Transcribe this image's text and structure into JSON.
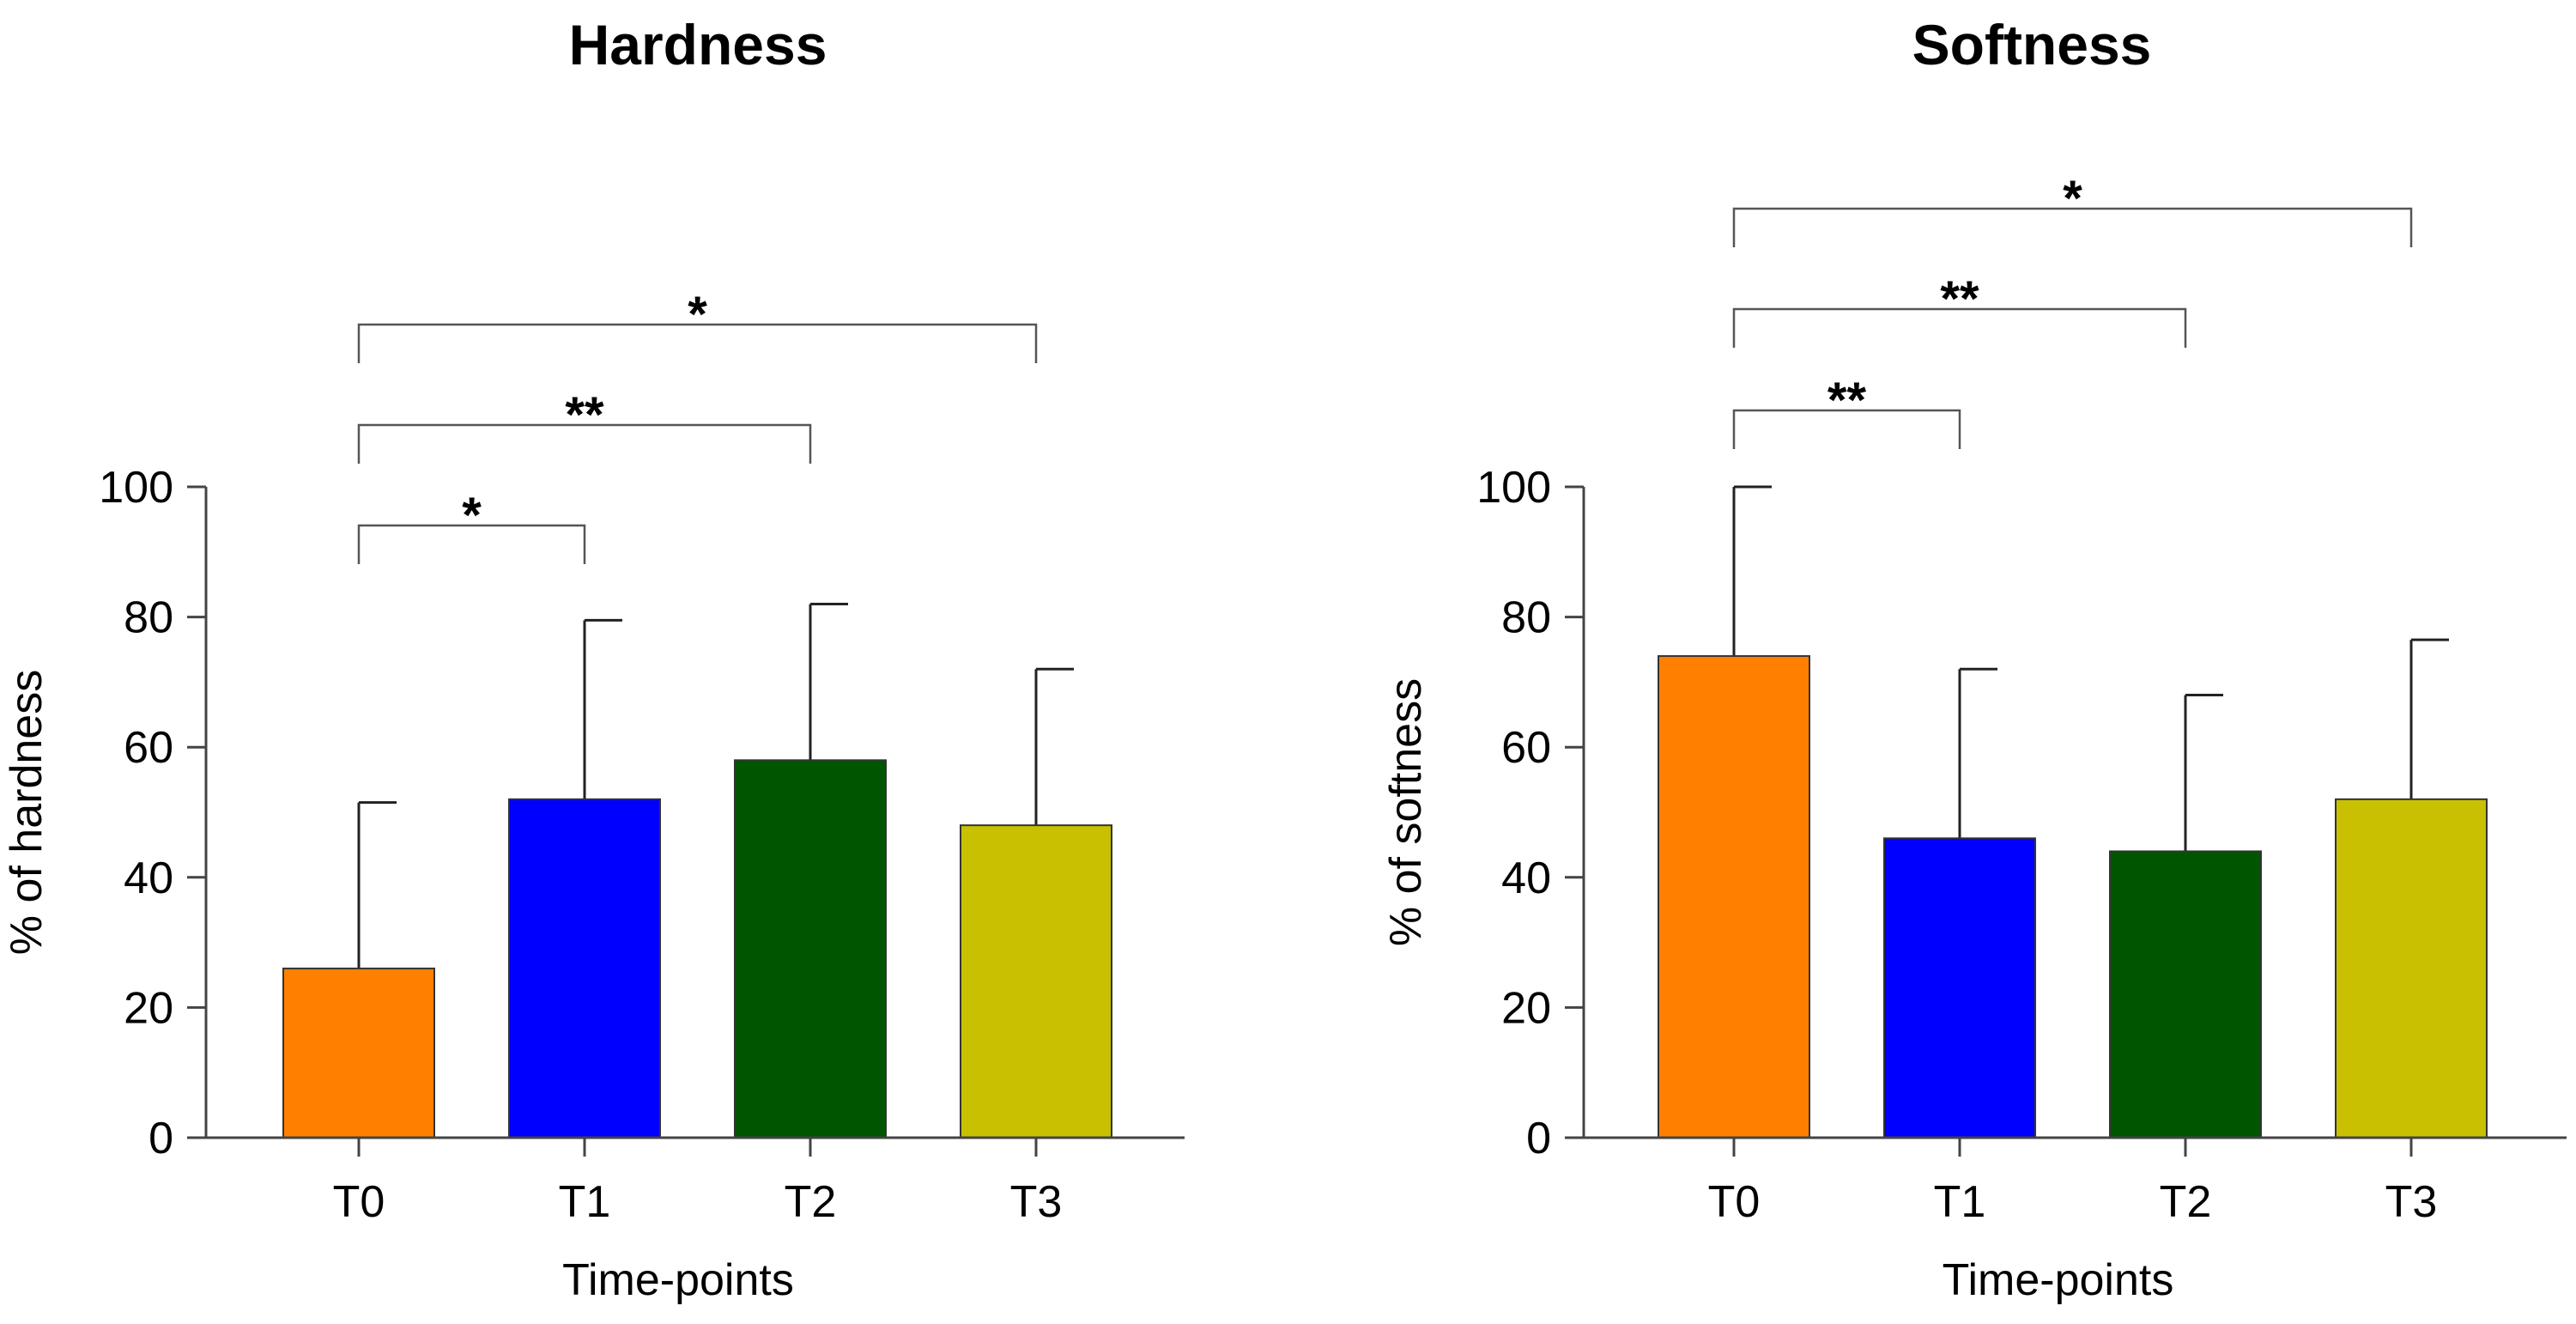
{
  "chart_data": [
    {
      "type": "bar",
      "title": "Hardness",
      "xlabel": "Time-points",
      "ylabel": "% of hardness",
      "ylim": [
        0,
        100
      ],
      "yticks": [
        0,
        20,
        40,
        60,
        80,
        100
      ],
      "categories": [
        "T0",
        "T1",
        "T2",
        "T3"
      ],
      "values": [
        26,
        52,
        58,
        48
      ],
      "errors": [
        25.5,
        27.5,
        24,
        24
      ],
      "colors": [
        "#ff8000",
        "#0000ff",
        "#005500",
        "#c8c000"
      ],
      "comparisons": [
        {
          "from": "T0",
          "to": "T1",
          "label": "*"
        },
        {
          "from": "T0",
          "to": "T2",
          "label": "**"
        },
        {
          "from": "T0",
          "to": "T3",
          "label": "*"
        }
      ]
    },
    {
      "type": "bar",
      "title": "Softness",
      "xlabel": "Time-points",
      "ylabel": "% of softness",
      "ylim": [
        0,
        100
      ],
      "yticks": [
        0,
        20,
        40,
        60,
        80,
        100
      ],
      "categories": [
        "T0",
        "T1",
        "T2",
        "T3"
      ],
      "values": [
        74,
        46,
        44,
        52
      ],
      "errors": [
        26,
        26,
        24,
        24.5
      ],
      "colors": [
        "#ff8000",
        "#0000ff",
        "#005500",
        "#c8c000"
      ],
      "comparisons": [
        {
          "from": "T0",
          "to": "T1",
          "label": "**"
        },
        {
          "from": "T0",
          "to": "T2",
          "label": "**"
        },
        {
          "from": "T0",
          "to": "T3",
          "label": "*"
        }
      ]
    }
  ]
}
